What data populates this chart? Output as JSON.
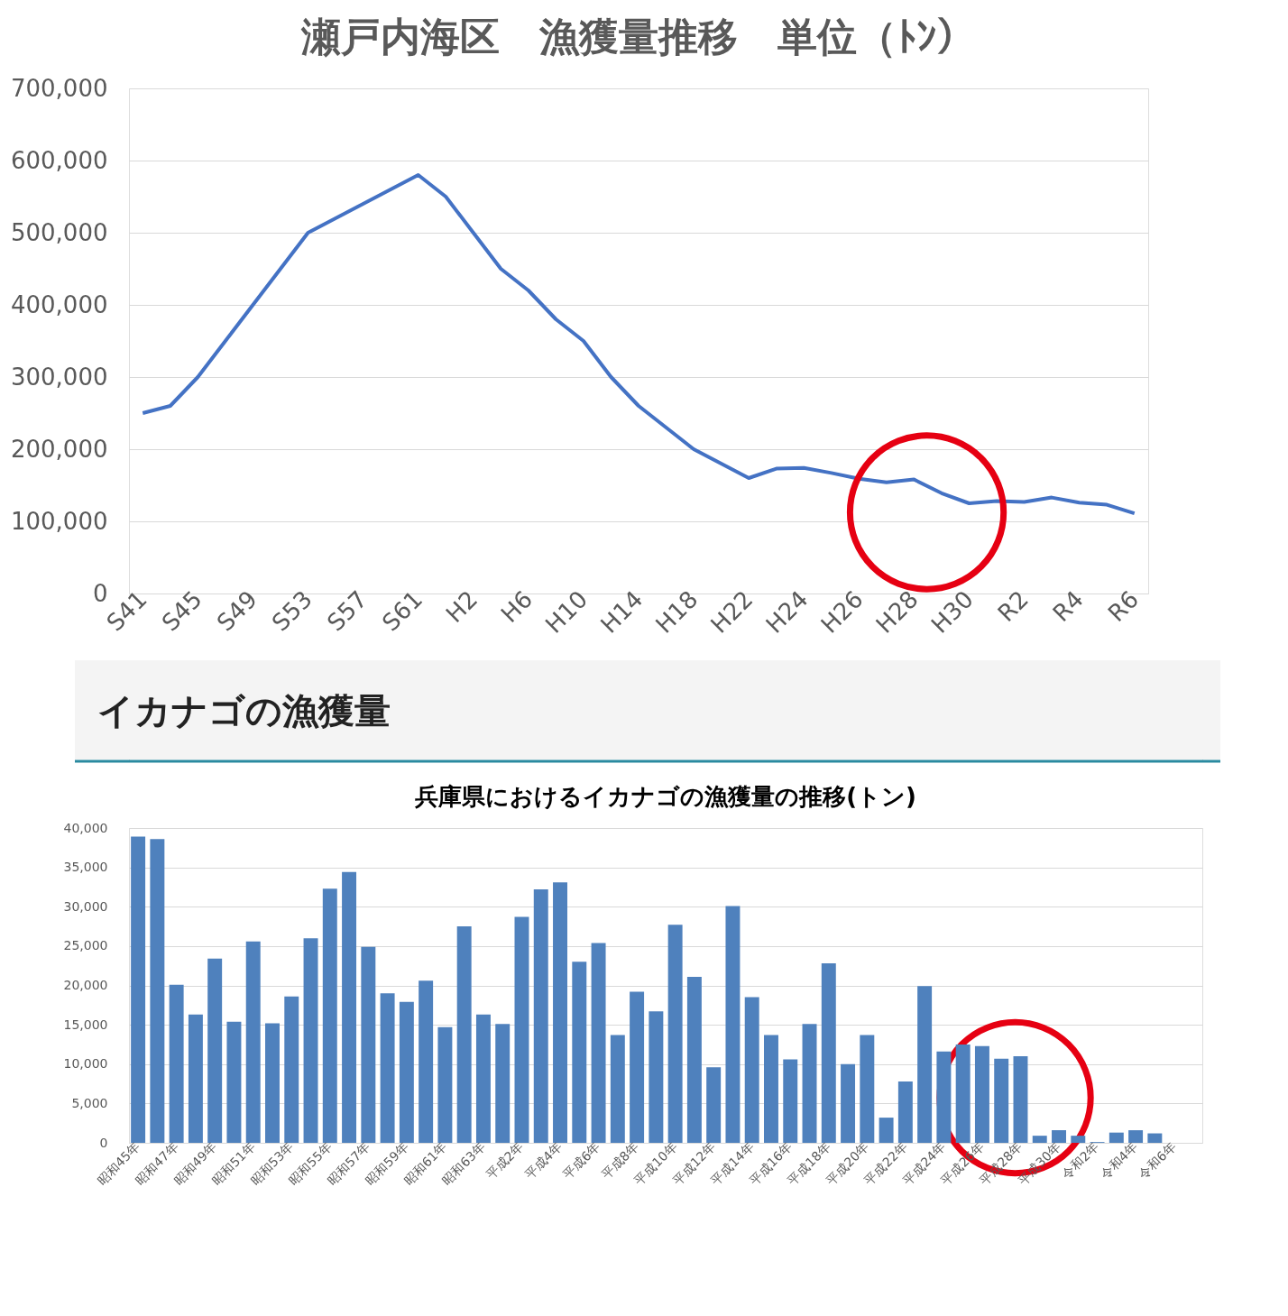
{
  "chart_data": [
    {
      "type": "line",
      "title": "瀬戸内海区　漁獲量推移　単位（ﾄﾝ）",
      "color": "#4472c4",
      "grid": "y",
      "ylim": [
        0,
        700000
      ],
      "yticks": [
        0,
        {
          "value": 100000,
          "label": "100,000"
        },
        {
          "value": 200000,
          "label": "200,000"
        },
        {
          "value": 300000,
          "label": "300,000"
        },
        {
          "value": 400000,
          "label": "400,000"
        },
        {
          "value": 500000,
          "label": "500,000"
        },
        {
          "value": 600000,
          "label": "600,000"
        },
        {
          "value": 700000,
          "label": "700,000"
        }
      ],
      "categories": [
        "S41",
        null,
        "S45",
        null,
        "S49",
        null,
        "S53",
        null,
        "S57",
        null,
        "S61",
        null,
        "H2",
        null,
        "H6",
        null,
        "H10",
        null,
        "H14",
        null,
        "H18",
        null,
        "H22",
        null,
        "H24",
        null,
        "H26",
        null,
        "H28",
        null,
        "H30",
        null,
        "R2",
        null,
        "R4",
        null,
        "R6"
      ],
      "values": [
        250000,
        260000,
        300000,
        350000,
        400000,
        450000,
        500000,
        520000,
        540000,
        560000,
        580000,
        550000,
        500000,
        450000,
        420000,
        380000,
        350000,
        300000,
        260000,
        230000,
        200000,
        180000,
        160000,
        173000,
        174000,
        167000,
        159000,
        154000,
        158000,
        139000,
        125000,
        128000,
        127000,
        133000,
        126000,
        123000,
        111000
      ]
    },
    {
      "type": "bar",
      "title": "兵庫県におけるイカナゴの漁獲量の推移(トン)",
      "annotations": [
        "イカナゴの漁獲量"
      ],
      "color": "#4f81bd",
      "grid": "y",
      "ylim": [
        0,
        40000
      ],
      "yticks": [
        0,
        {
          "value": 5000,
          "label": "5,000"
        },
        {
          "value": 10000,
          "label": "10,000"
        },
        {
          "value": 15000,
          "label": "15,000"
        },
        {
          "value": 20000,
          "label": "20,000"
        },
        {
          "value": 25000,
          "label": "25,000"
        },
        {
          "value": 30000,
          "label": "30,000"
        },
        {
          "value": 35000,
          "label": "35,000"
        },
        {
          "value": 40000,
          "label": "40,000"
        }
      ],
      "categories": [
        "昭和45年",
        null,
        "昭和47年",
        null,
        "昭和49年",
        null,
        "昭和51年",
        null,
        "昭和53年",
        null,
        "昭和55年",
        null,
        "昭和57年",
        null,
        "昭和59年",
        null,
        "昭和61年",
        null,
        "昭和63年",
        null,
        "平成2年",
        null,
        "平成4年",
        null,
        "平成6年",
        null,
        "平成8年",
        null,
        "平成10年",
        null,
        "平成12年",
        null,
        "平成14年",
        null,
        "平成16年",
        null,
        "平成18年",
        null,
        "平成20年",
        null,
        "平成22年",
        null,
        "平成24年",
        null,
        "平成26年",
        null,
        "平成28年",
        null,
        "平成30年",
        null,
        "令和2年",
        null,
        "令和4年",
        null,
        "令和6年",
        null
      ],
      "values": [
        38900,
        38600,
        20100,
        16300,
        23400,
        15400,
        25600,
        15200,
        18600,
        26000,
        32300,
        34400,
        24900,
        19000,
        17900,
        20600,
        14700,
        27500,
        16300,
        15100,
        28700,
        32200,
        33100,
        23000,
        25400,
        13700,
        19200,
        16700,
        27700,
        21100,
        9600,
        30100,
        18500,
        13700,
        10600,
        15100,
        22800,
        10000,
        13700,
        3200,
        7800,
        19900,
        11600,
        12500,
        12300,
        10700,
        11000,
        900,
        1600,
        900,
        100,
        1300,
        1600,
        1200,
        null,
        null
      ]
    }
  ]
}
